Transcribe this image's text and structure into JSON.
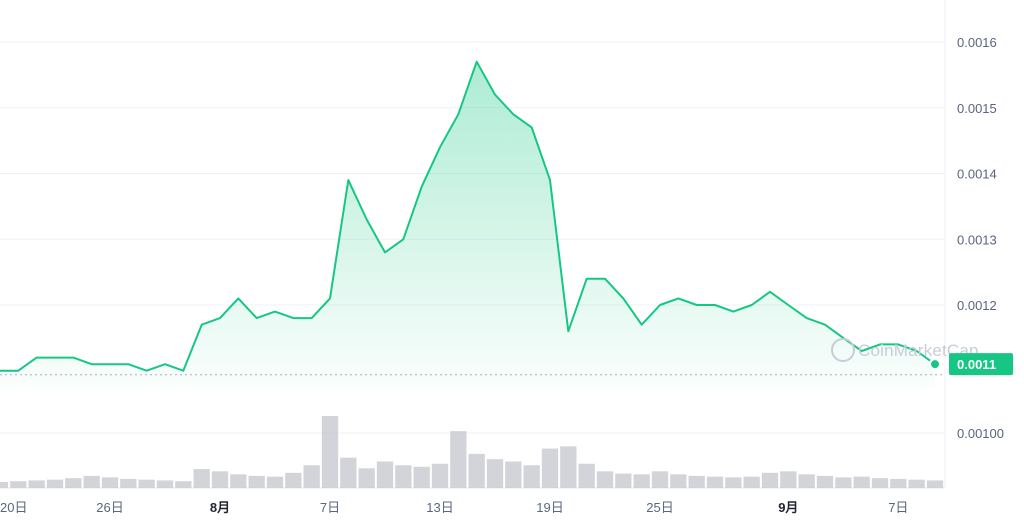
{
  "chart_data": {
    "type": "area",
    "title": "",
    "xlabel": "",
    "ylabel": "",
    "price_axis": {
      "ticks": [
        "0.0016",
        "0.0015",
        "0.0014",
        "0.0013",
        "0.0012"
      ],
      "tick_values": [
        0.0016,
        0.0015,
        0.0014,
        0.0013,
        0.0012
      ],
      "ylim": [
        0.001075,
        0.00165
      ]
    },
    "volume_axis": {
      "ticks": [
        "0.00100"
      ]
    },
    "x_ticks": [
      {
        "label": "20日",
        "index": 0,
        "bold": false
      },
      {
        "label": "26日",
        "index": 6,
        "bold": false
      },
      {
        "label": "8月",
        "index": 12,
        "bold": true
      },
      {
        "label": "7日",
        "index": 18,
        "bold": false
      },
      {
        "label": "13日",
        "index": 24,
        "bold": false
      },
      {
        "label": "19日",
        "index": 30,
        "bold": false
      },
      {
        "label": "25日",
        "index": 36,
        "bold": false
      },
      {
        "label": "9月",
        "index": 43,
        "bold": true
      },
      {
        "label": "7日",
        "index": 49,
        "bold": false
      }
    ],
    "series": [
      {
        "values": [
          0.0011,
          0.0011,
          0.00112,
          0.00112,
          0.00112,
          0.00111,
          0.00111,
          0.00111,
          0.0011,
          0.00111,
          0.0011,
          0.00117,
          0.00118,
          0.00121,
          0.00118,
          0.00119,
          0.00118,
          0.00118,
          0.00121,
          0.00139,
          0.00133,
          0.00128,
          0.0013,
          0.00138,
          0.00144,
          0.00149,
          0.00157,
          0.00152,
          0.00149,
          0.00147,
          0.00139,
          0.00116,
          0.00124,
          0.00124,
          0.00121,
          0.00117,
          0.0012,
          0.00121,
          0.0012,
          0.0012,
          0.00119,
          0.0012,
          0.00122,
          0.0012,
          0.00118,
          0.00117,
          0.00115,
          0.00113,
          0.00114,
          0.00114,
          0.00113,
          0.00111
        ],
        "current": 0.0011
      }
    ],
    "volume": [
      0.8,
      0.9,
      1.0,
      1.1,
      1.3,
      1.6,
      1.4,
      1.2,
      1.1,
      1.0,
      0.9,
      2.5,
      2.2,
      1.8,
      1.6,
      1.5,
      2.0,
      3.0,
      9.5,
      4.0,
      2.6,
      3.5,
      3.0,
      2.8,
      3.2,
      7.5,
      4.5,
      3.8,
      3.5,
      3.0,
      5.2,
      5.5,
      3.2,
      2.2,
      1.9,
      1.8,
      2.2,
      1.8,
      1.6,
      1.5,
      1.4,
      1.5,
      2.0,
      2.2,
      1.8,
      1.6,
      1.4,
      1.5,
      1.3,
      1.2,
      1.1,
      1.0
    ],
    "current_label": "0.0011",
    "line_color": "#16c784",
    "volume_color": "#c3c6cc",
    "grid": true
  },
  "watermark": {
    "text": "CoinMarketCap"
  }
}
